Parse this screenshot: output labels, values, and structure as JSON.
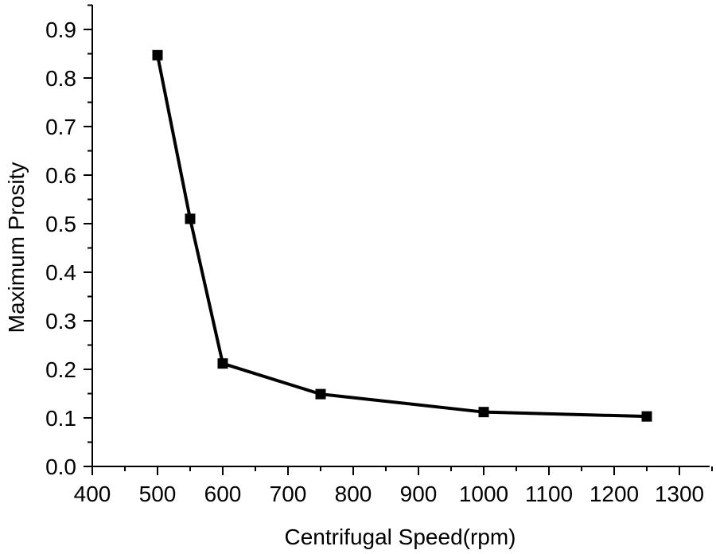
{
  "chart_data": {
    "type": "line",
    "xlabel": "Centrifugal Speed(rpm)",
    "ylabel": "Maximum Prosity",
    "xlim": [
      400,
      1300
    ],
    "ylim": [
      0.0,
      0.9
    ],
    "xticks": [
      "400",
      "500",
      "600",
      "700",
      "800",
      "900",
      "1000",
      "1100",
      "1200",
      "1300"
    ],
    "yticks": [
      "0.0",
      "0.1",
      "0.2",
      "0.3",
      "0.4",
      "0.5",
      "0.6",
      "0.7",
      "0.8",
      "0.9"
    ],
    "marker": "square",
    "line_color": "#000000",
    "grid": false,
    "series": [
      {
        "x": [
          500,
          550,
          600,
          750,
          1000,
          1250
        ],
        "y": [
          0.847,
          0.51,
          0.212,
          0.149,
          0.112,
          0.103
        ]
      }
    ]
  }
}
